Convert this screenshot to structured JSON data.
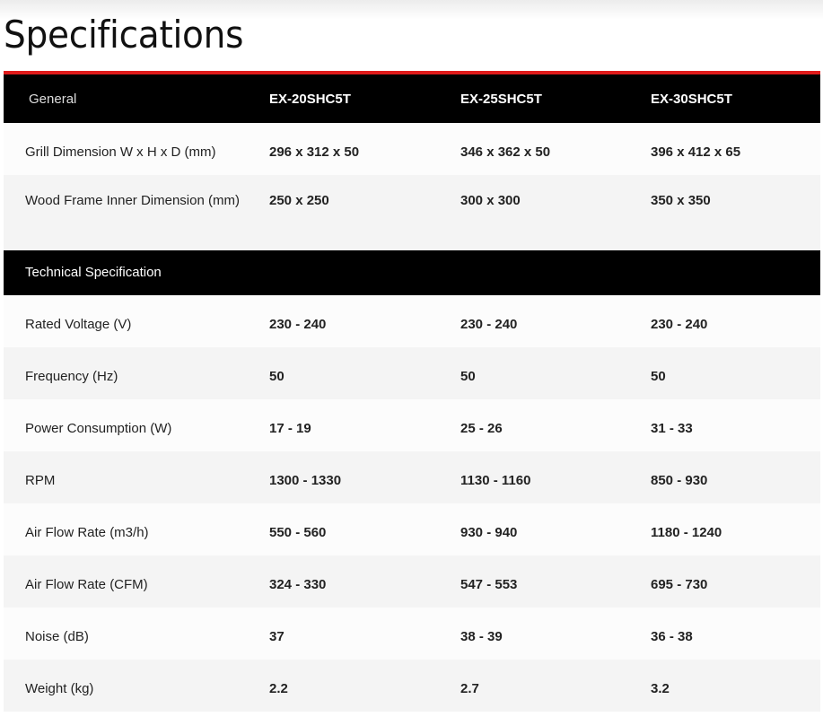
{
  "title": "Specifications",
  "colors": {
    "accent": "#e01b1b",
    "header_bg": "#000000"
  },
  "header": {
    "label": "General",
    "models": [
      "EX-20SHC5T",
      "EX-25SHC5T",
      "EX-30SHC5T"
    ]
  },
  "general_rows": [
    {
      "label": "Grill Dimension W x H x D (mm)",
      "values": [
        "296 x 312 x 50",
        "346 x 362 x 50",
        "396 x 412 x 65"
      ]
    },
    {
      "label": "Wood Frame Inner Dimension (mm)",
      "values": [
        "250 x 250",
        "300 x 300",
        "350 x 350"
      ]
    }
  ],
  "section": {
    "label": "Technical Specification"
  },
  "tech_rows": [
    {
      "label": "Rated Voltage (V)",
      "values": [
        "230 - 240",
        "230 - 240",
        "230 - 240"
      ]
    },
    {
      "label": "Frequency (Hz)",
      "values": [
        "50",
        "50",
        "50"
      ]
    },
    {
      "label": "Power Consumption (W)",
      "values": [
        "17 - 19",
        "25 - 26",
        "31 - 33"
      ]
    },
    {
      "label": "RPM",
      "values": [
        "1300 - 1330",
        "1130 - 1160",
        "850 - 930"
      ]
    },
    {
      "label": "Air Flow Rate (m3/h)",
      "values": [
        "550 - 560",
        "930 - 940",
        "1180 - 1240"
      ]
    },
    {
      "label": "Air Flow Rate (CFM)",
      "values": [
        "324 - 330",
        "547 - 553",
        "695 - 730"
      ]
    },
    {
      "label": "Noise (dB)",
      "values": [
        "37",
        "38 - 39",
        "36 - 38"
      ]
    },
    {
      "label": "Weight (kg)",
      "values": [
        "2.2",
        "2.7",
        "3.2"
      ]
    }
  ]
}
